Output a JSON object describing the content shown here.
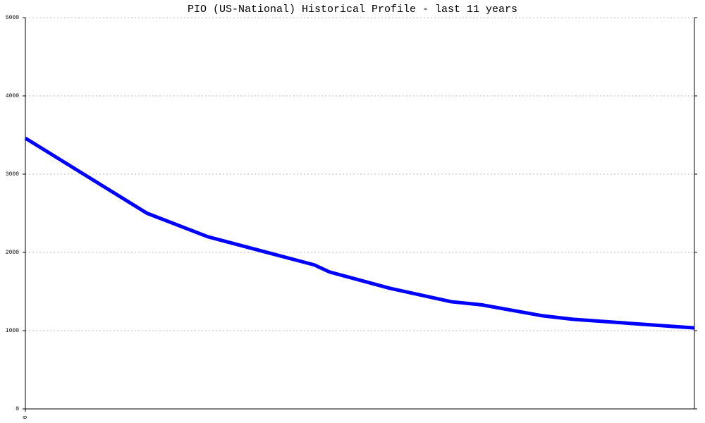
{
  "chart_data": {
    "type": "line",
    "title": "PIO (US-National) Historical Profile - last 11 years",
    "x": [
      0,
      2,
      3,
      4.75,
      5,
      6,
      7,
      7.5,
      8.5,
      9,
      11
    ],
    "series": [
      {
        "color": "#0000ff",
        "values": [
          3460,
          2500,
          2200,
          1840,
          1750,
          1540,
          1370,
          1330,
          1190,
          1145,
          1035
        ]
      }
    ],
    "xlim": [
      0,
      11
    ],
    "xticks": [
      0
    ],
    "ylim": [
      0,
      5000
    ],
    "yticks": [
      0,
      1000,
      2000,
      3000,
      4000,
      5000
    ],
    "grid": true
  }
}
